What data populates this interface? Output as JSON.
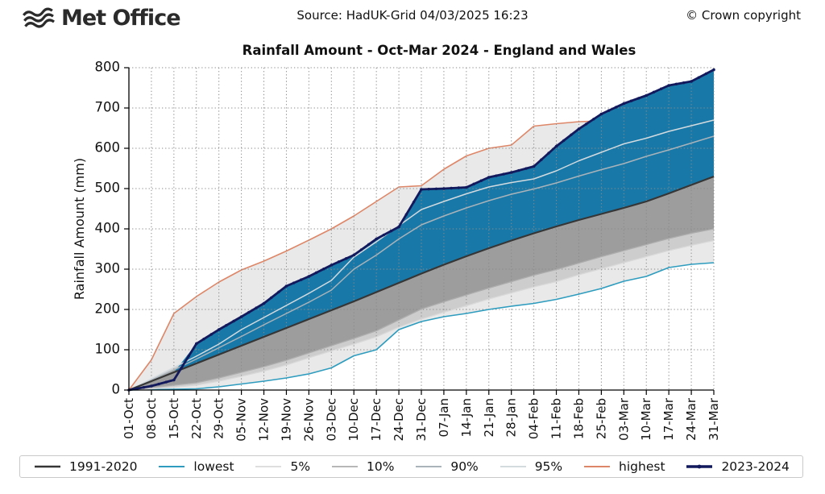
{
  "header": {
    "logo_text": "Met Office",
    "source": "Source: HadUK-Grid 04/03/2025 16:23",
    "copyright": "© Crown copyright"
  },
  "chart_data": {
    "type": "line",
    "title": "Rainfall Amount - Oct-Mar 2024 - England and Wales",
    "xlabel": "",
    "ylabel": "Rainfall Amount (mm)",
    "ylim": [
      0,
      800
    ],
    "yticks": [
      0,
      100,
      200,
      300,
      400,
      500,
      600,
      700,
      800
    ],
    "grid": "dotted",
    "grid_color": "#8a8a8a",
    "legend_position": "bottom",
    "categories": [
      "01-Oct",
      "08-Oct",
      "15-Oct",
      "22-Oct",
      "29-Oct",
      "05-Nov",
      "12-Nov",
      "19-Nov",
      "26-Nov",
      "03-Dec",
      "10-Dec",
      "17-Dec",
      "24-Dec",
      "31-Dec",
      "07-Jan",
      "14-Jan",
      "21-Jan",
      "28-Jan",
      "04-Feb",
      "11-Feb",
      "18-Feb",
      "25-Feb",
      "03-Mar",
      "10-Mar",
      "17-Mar",
      "24-Mar",
      "31-Mar"
    ],
    "series": [
      {
        "name": "1991-2020",
        "color": "#363636",
        "width": 2.2,
        "marker": false,
        "values": [
          0,
          22,
          44,
          66,
          88,
          110,
          132,
          154,
          176,
          198,
          220,
          243,
          266,
          289,
          311,
          332,
          352,
          371,
          389,
          406,
          422,
          437,
          452,
          468,
          488,
          509,
          530
        ]
      },
      {
        "name": "lowest",
        "color": "#2d9cbe",
        "width": 1.6,
        "marker": false,
        "values": [
          0,
          1,
          2,
          3,
          8,
          15,
          22,
          30,
          40,
          55,
          85,
          100,
          150,
          170,
          182,
          190,
          200,
          208,
          215,
          225,
          238,
          252,
          270,
          282,
          304,
          312,
          316
        ]
      },
      {
        "name": "5%",
        "color": "#d9d9d9",
        "width": 1.3,
        "marker": false,
        "values": [
          0,
          3,
          7,
          12,
          22,
          34,
          47,
          62,
          80,
          97,
          114,
          132,
          156,
          176,
          193,
          209,
          226,
          241,
          256,
          269,
          286,
          301,
          316,
          331,
          346,
          359,
          371
        ]
      },
      {
        "name": "10%",
        "color": "#adadad",
        "width": 1.3,
        "marker": false,
        "values": [
          0,
          6,
          12,
          18,
          30,
          44,
          58,
          74,
          92,
          110,
          128,
          147,
          174,
          201,
          219,
          236,
          253,
          269,
          285,
          299,
          315,
          331,
          346,
          361,
          376,
          389,
          400
        ]
      },
      {
        "name": "90%",
        "color": "#a9b3b9",
        "width": 1.5,
        "marker": false,
        "values": [
          0,
          25,
          50,
          77,
          105,
          133,
          162,
          190,
          218,
          248,
          300,
          335,
          375,
          410,
          432,
          452,
          470,
          486,
          499,
          514,
          531,
          547,
          562,
          580,
          596,
          613,
          630
        ]
      },
      {
        "name": "95%",
        "color": "#d4dbdf",
        "width": 1.5,
        "marker": false,
        "values": [
          0,
          28,
          56,
          84,
          114,
          150,
          180,
          210,
          240,
          272,
          330,
          368,
          408,
          448,
          468,
          487,
          504,
          515,
          524,
          544,
          569,
          590,
          611,
          625,
          642,
          656,
          670
        ]
      },
      {
        "name": "highest",
        "color": "#de8768",
        "width": 1.6,
        "marker": false,
        "values": [
          0,
          75,
          190,
          232,
          268,
          298,
          320,
          345,
          372,
          400,
          432,
          468,
          504,
          507,
          548,
          581,
          600,
          608,
          655,
          661,
          666,
          668,
          668,
          668,
          668,
          668,
          668
        ]
      },
      {
        "name": "2023-2024",
        "color": "#12195c",
        "width": 2.8,
        "marker": true,
        "values": [
          0,
          10,
          25,
          115,
          150,
          182,
          215,
          258,
          282,
          310,
          335,
          375,
          405,
          498,
          500,
          503,
          528,
          540,
          555,
          605,
          648,
          685,
          711,
          731,
          756,
          766,
          795
        ]
      }
    ],
    "bands": [
      {
        "lower": "lowest",
        "upper": "highest",
        "color": "#e9e9e9"
      },
      {
        "lower": "5%",
        "upper": "95%",
        "color": "#cdcdcd"
      },
      {
        "lower": "10%",
        "upper": "90%",
        "color": "#9d9d9d"
      },
      {
        "lower": "1991-2020",
        "upper": "2023-2024",
        "color": "#1878a8",
        "clamp_to_lower": true
      }
    ]
  }
}
